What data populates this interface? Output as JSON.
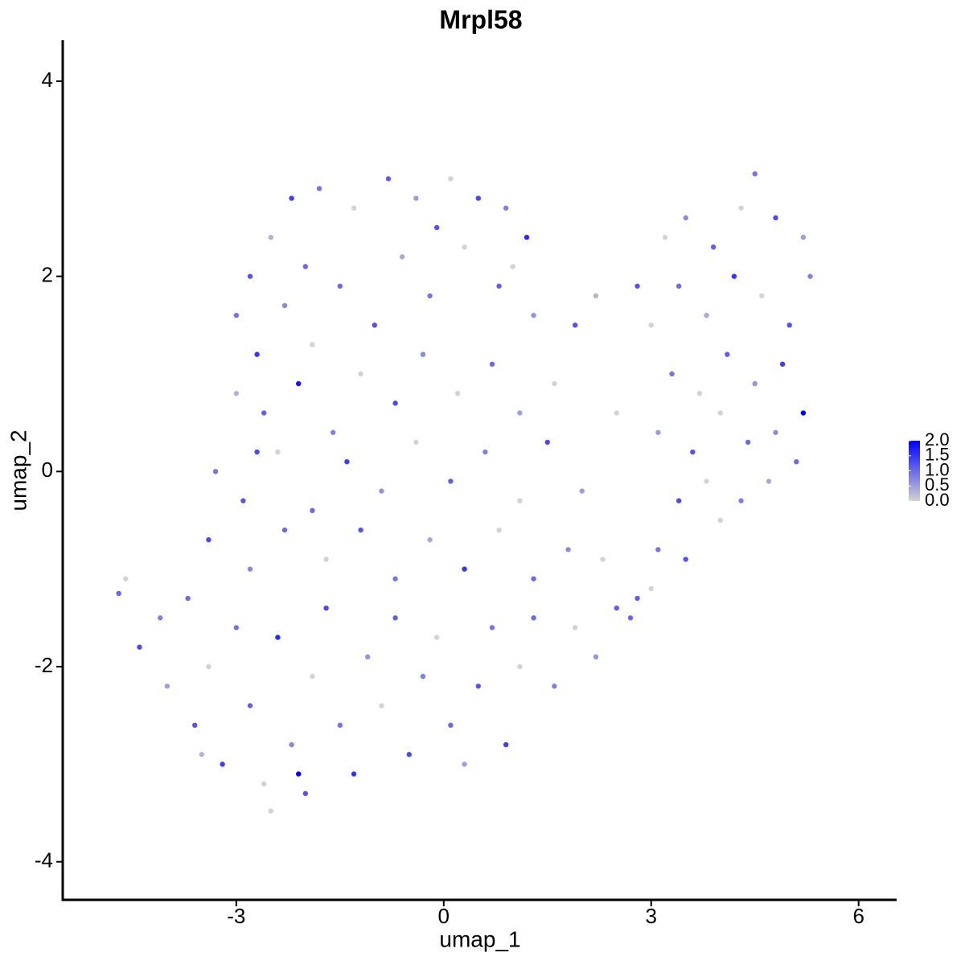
{
  "chart_data": {
    "type": "scatter",
    "title": "Mrpl58",
    "x_label": "umap_1",
    "y_label": "umap_2",
    "xlim": [
      -5.51,
      6.55
    ],
    "ylim": [
      -4.39,
      4.42
    ],
    "xticks": [
      -3,
      0,
      3,
      6
    ],
    "yticks": [
      -4,
      -2,
      0,
      2,
      4
    ],
    "grid": false,
    "low_color": "#d3d3d3",
    "high_color": "#0000ff",
    "colorlim": [
      0,
      2
    ],
    "colorticks": [
      {
        "value": 0,
        "label": "0.0"
      },
      {
        "value": 0.5,
        "label": "0.5"
      },
      {
        "value": 1,
        "label": "1.0"
      },
      {
        "value": 1.5,
        "label": "1.5"
      },
      {
        "value": 2,
        "label": "2.0"
      }
    ],
    "x": [
      -2.8,
      -2.5,
      -2.2,
      -1.8,
      -1.3,
      -0.8,
      -0.4,
      0.1,
      0.5,
      0.9,
      1.2,
      -3.0,
      -2.7,
      -2.3,
      -1.9,
      -1.5,
      -1.0,
      -0.6,
      -0.2,
      0.3,
      0.8,
      1.3,
      -3.0,
      -2.6,
      -2.1,
      -1.6,
      -1.2,
      -0.7,
      -0.3,
      0.2,
      0.7,
      1.1,
      1.6,
      1.9,
      2.2,
      -3.3,
      -2.9,
      -2.4,
      -1.9,
      -1.4,
      -0.9,
      -0.4,
      0.1,
      0.6,
      1.1,
      1.5,
      2.0,
      2.5,
      -3.4,
      -2.8,
      -2.3,
      -1.7,
      -1.2,
      -0.7,
      -0.2,
      0.3,
      0.8,
      1.3,
      1.8,
      2.3,
      2.8,
      -4.7,
      -4.6,
      -4.4,
      -4.1,
      -4.0,
      -3.7,
      -3.6,
      -3.4,
      -3.2,
      -3.0,
      -2.8,
      -2.6,
      -2.4,
      -2.2,
      -2.0,
      -1.9,
      -1.7,
      -1.5,
      -1.3,
      -1.1,
      -0.9,
      -0.7,
      -0.5,
      -0.3,
      -0.1,
      0.1,
      0.3,
      0.5,
      0.7,
      0.9,
      1.1,
      1.3,
      1.6,
      1.9,
      2.2,
      2.5,
      -2.1,
      -2.5,
      -3.5,
      2.8,
      3.2,
      3.5,
      3.9,
      4.3,
      4.5,
      4.8,
      5.2,
      5.3,
      3.0,
      3.4,
      3.8,
      4.2,
      4.6,
      5.0,
      3.3,
      3.7,
      4.1,
      4.5,
      4.9,
      5.2,
      3.1,
      3.6,
      4.0,
      4.4,
      4.8,
      5.1,
      3.4,
      3.8,
      4.3,
      4.7,
      3.1,
      3.5,
      3.0,
      2.7,
      1.0,
      -0.1,
      -2.0,
      -2.7,
      4.0
    ],
    "values": [
      2.0,
      2.4,
      2.8,
      2.9,
      2.7,
      3.0,
      2.8,
      3.0,
      2.8,
      2.7,
      2.4,
      1.6,
      1.2,
      1.7,
      1.3,
      1.9,
      1.5,
      2.2,
      1.8,
      2.3,
      1.9,
      1.6,
      0.8,
      0.6,
      0.9,
      0.4,
      1.0,
      0.7,
      1.2,
      0.8,
      1.1,
      0.6,
      0.9,
      1.5,
      1.8,
      0.0,
      -0.3,
      0.2,
      -0.4,
      0.1,
      -0.2,
      0.3,
      -0.1,
      0.2,
      -0.3,
      0.3,
      -0.2,
      0.6,
      -0.7,
      -1.0,
      -0.6,
      -0.9,
      -0.6,
      -1.1,
      -0.7,
      -1.0,
      -0.6,
      -1.1,
      -0.8,
      -0.9,
      -1.3,
      -1.25,
      -1.1,
      -1.8,
      -1.5,
      -2.2,
      -1.3,
      -2.6,
      -2.0,
      -3.0,
      -1.6,
      -2.4,
      -3.2,
      -1.7,
      -2.8,
      -3.3,
      -2.1,
      -1.4,
      -2.6,
      -3.1,
      -1.9,
      -2.4,
      -1.5,
      -2.9,
      -2.1,
      -1.7,
      -2.6,
      -3.0,
      -2.2,
      -1.6,
      -2.8,
      -2.0,
      -1.5,
      -2.2,
      -1.6,
      -1.9,
      -1.4,
      -3.1,
      -3.48,
      -2.9,
      1.9,
      2.4,
      2.6,
      2.3,
      2.7,
      3.05,
      2.6,
      2.4,
      2.0,
      1.5,
      1.9,
      1.6,
      2.0,
      1.8,
      1.5,
      1.0,
      0.8,
      1.2,
      0.9,
      1.1,
      0.6,
      0.4,
      0.2,
      0.6,
      0.3,
      0.4,
      0.1,
      -0.3,
      -0.1,
      -0.3,
      -0.1,
      -0.8,
      -0.9,
      -1.2,
      -1.5,
      2.1,
      2.5,
      2.1,
      0.2,
      -0.5
    ],
    "expression": [
      1.2,
      0.3,
      1.4,
      0.9,
      0.0,
      1.1,
      0.5,
      0.0,
      1.3,
      0.8,
      1.6,
      0.9,
      1.5,
      0.7,
      0.0,
      1.0,
      1.2,
      0.4,
      0.9,
      0.0,
      1.1,
      0.6,
      0.3,
      1.1,
      1.8,
      0.8,
      0.0,
      1.3,
      0.7,
      0.0,
      1.0,
      0.5,
      0.0,
      1.2,
      0.3,
      0.9,
      1.2,
      0.0,
      1.0,
      1.4,
      0.6,
      0.0,
      1.1,
      0.8,
      0.0,
      1.3,
      0.5,
      0.0,
      1.3,
      0.7,
      1.0,
      0.0,
      1.2,
      0.9,
      0.4,
      1.5,
      0.0,
      1.0,
      0.7,
      0.0,
      1.1,
      1.0,
      0.0,
      1.3,
      0.8,
      0.5,
      1.0,
      1.2,
      0.0,
      1.4,
      0.9,
      1.1,
      0.0,
      1.6,
      0.7,
      1.2,
      0.0,
      1.3,
      0.9,
      1.5,
      0.6,
      0.0,
      1.1,
      1.3,
      0.8,
      0.0,
      1.0,
      0.5,
      1.2,
      0.9,
      1.4,
      0.0,
      1.0,
      0.8,
      0.0,
      0.6,
      1.1,
      2.0,
      0.0,
      0.3,
      1.2,
      0.0,
      0.7,
      1.1,
      0.0,
      0.9,
      1.3,
      0.5,
      0.8,
      0.0,
      1.0,
      0.4,
      1.5,
      0.0,
      1.2,
      0.9,
      0.0,
      1.1,
      0.6,
      1.4,
      2.0,
      0.5,
      1.2,
      0.0,
      1.0,
      0.7,
      1.0,
      1.3,
      0.0,
      0.8,
      0.4,
      0.9,
      1.2,
      0.0,
      1.0,
      0.0,
      1.2,
      1.0,
      1.3,
      0.0
    ]
  }
}
